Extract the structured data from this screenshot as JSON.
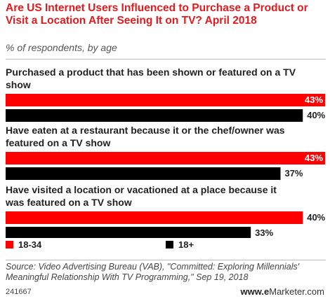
{
  "header": {
    "title": "Are US Internet Users Influenced to Purchase a Product or Visit a Location After Seeing It on TV? April 2018",
    "subtitle": "% of respondents, by age"
  },
  "legend": [
    {
      "label": "18-34",
      "color": "#ff0000"
    },
    {
      "label": "18+",
      "color": "#000000"
    }
  ],
  "footer": {
    "source": "Source: Video Advertising Bureau (VAB), \"Committed: Exploring Millennials' Meaningful Relationship With TV Programming,\" Sep 19, 2018",
    "chart_id": "241667",
    "brand": "www.eMarketer.com"
  },
  "chart_data": {
    "type": "bar",
    "orientation": "horizontal",
    "categories": [
      "Purchased a product that has been shown or featured on a TV show",
      "Have eaten at a restaurant because it or the chef/owner was featured on a TV show",
      "Have visited a location or vacationed at a place because it was featured on a TV show"
    ],
    "series": [
      {
        "name": "18-34",
        "color": "#ff0000",
        "values": [
          43,
          43,
          40
        ]
      },
      {
        "name": "18+",
        "color": "#000000",
        "values": [
          40,
          37,
          33
        ]
      }
    ],
    "value_suffix": "%",
    "xlim": [
      0,
      43
    ],
    "grid": false,
    "legend_position": "bottom"
  }
}
